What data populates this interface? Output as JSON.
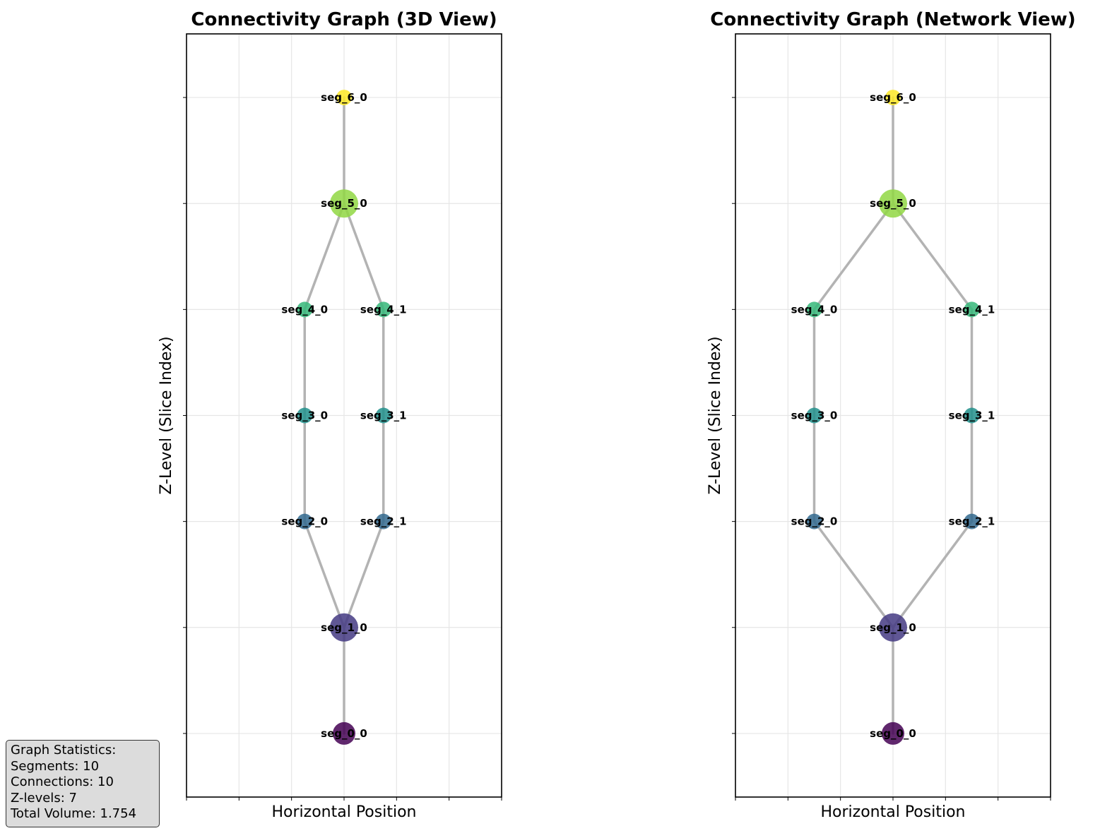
{
  "chart_data": [
    {
      "type": "network",
      "title": "Connectivity Graph (3D View)",
      "xlabel": "Horizontal Position",
      "ylabel": "Z-Level (Slice Index)",
      "xlim": [
        -3,
        3
      ],
      "ylim": [
        -0.6,
        6.6
      ],
      "grid": true,
      "nodes": [
        {
          "id": "seg_0_0",
          "label": "seg_0_0",
          "x": 0.0,
          "z": 0,
          "size": "medium",
          "color": "#440154"
        },
        {
          "id": "seg_1_0",
          "label": "seg_1_0",
          "x": 0.0,
          "z": 1,
          "size": "large",
          "color": "#443983"
        },
        {
          "id": "seg_2_0",
          "label": "seg_2_0",
          "x": -0.75,
          "z": 2,
          "size": "small",
          "color": "#31688e"
        },
        {
          "id": "seg_2_1",
          "label": "seg_2_1",
          "x": 0.75,
          "z": 2,
          "size": "small",
          "color": "#31688e"
        },
        {
          "id": "seg_3_0",
          "label": "seg_3_0",
          "x": -0.75,
          "z": 3,
          "size": "small",
          "color": "#21918c"
        },
        {
          "id": "seg_3_1",
          "label": "seg_3_1",
          "x": 0.75,
          "z": 3,
          "size": "small",
          "color": "#21918c"
        },
        {
          "id": "seg_4_0",
          "label": "seg_4_0",
          "x": -0.75,
          "z": 4,
          "size": "small",
          "color": "#35b779"
        },
        {
          "id": "seg_4_1",
          "label": "seg_4_1",
          "x": 0.75,
          "z": 4,
          "size": "small",
          "color": "#35b779"
        },
        {
          "id": "seg_5_0",
          "label": "seg_5_0",
          "x": 0.0,
          "z": 5,
          "size": "large",
          "color": "#90d743"
        },
        {
          "id": "seg_6_0",
          "label": "seg_6_0",
          "x": 0.0,
          "z": 6,
          "size": "small",
          "color": "#fde725"
        }
      ],
      "edges": [
        [
          "seg_0_0",
          "seg_1_0"
        ],
        [
          "seg_1_0",
          "seg_2_0"
        ],
        [
          "seg_1_0",
          "seg_2_1"
        ],
        [
          "seg_2_0",
          "seg_3_0"
        ],
        [
          "seg_2_1",
          "seg_3_1"
        ],
        [
          "seg_3_0",
          "seg_4_0"
        ],
        [
          "seg_3_1",
          "seg_4_1"
        ],
        [
          "seg_4_0",
          "seg_5_0"
        ],
        [
          "seg_4_1",
          "seg_5_0"
        ],
        [
          "seg_5_0",
          "seg_6_0"
        ]
      ]
    },
    {
      "type": "network",
      "title": "Connectivity Graph (Network View)",
      "xlabel": "Horizontal Position",
      "ylabel": "Z-Level (Slice Index)",
      "xlim": [
        -3,
        3
      ],
      "ylim": [
        -0.6,
        6.6
      ],
      "grid": true,
      "nodes": [
        {
          "id": "seg_0_0",
          "label": "seg_0_0",
          "x": 0.0,
          "z": 0,
          "size": "medium",
          "color": "#440154"
        },
        {
          "id": "seg_1_0",
          "label": "seg_1_0",
          "x": 0.0,
          "z": 1,
          "size": "large",
          "color": "#443983"
        },
        {
          "id": "seg_2_0",
          "label": "seg_2_0",
          "x": -1.5,
          "z": 2,
          "size": "small",
          "color": "#31688e"
        },
        {
          "id": "seg_2_1",
          "label": "seg_2_1",
          "x": 1.5,
          "z": 2,
          "size": "small",
          "color": "#31688e"
        },
        {
          "id": "seg_3_0",
          "label": "seg_3_0",
          "x": -1.5,
          "z": 3,
          "size": "small",
          "color": "#21918c"
        },
        {
          "id": "seg_3_1",
          "label": "seg_3_1",
          "x": 1.5,
          "z": 3,
          "size": "small",
          "color": "#21918c"
        },
        {
          "id": "seg_4_0",
          "label": "seg_4_0",
          "x": -1.5,
          "z": 4,
          "size": "small",
          "color": "#35b779"
        },
        {
          "id": "seg_4_1",
          "label": "seg_4_1",
          "x": 1.5,
          "z": 4,
          "size": "small",
          "color": "#35b779"
        },
        {
          "id": "seg_5_0",
          "label": "seg_5_0",
          "x": 0.0,
          "z": 5,
          "size": "large",
          "color": "#90d743"
        },
        {
          "id": "seg_6_0",
          "label": "seg_6_0",
          "x": 0.0,
          "z": 6,
          "size": "small",
          "color": "#fde725"
        }
      ],
      "edges": [
        [
          "seg_0_0",
          "seg_1_0"
        ],
        [
          "seg_1_0",
          "seg_2_0"
        ],
        [
          "seg_1_0",
          "seg_2_1"
        ],
        [
          "seg_2_0",
          "seg_3_0"
        ],
        [
          "seg_2_1",
          "seg_3_1"
        ],
        [
          "seg_3_0",
          "seg_4_0"
        ],
        [
          "seg_3_1",
          "seg_4_1"
        ],
        [
          "seg_4_0",
          "seg_5_0"
        ],
        [
          "seg_4_1",
          "seg_5_0"
        ],
        [
          "seg_5_0",
          "seg_6_0"
        ]
      ]
    }
  ],
  "colors": {
    "edge": "#b3b3b3",
    "grid": "#e6e6e6",
    "stats_background": "#dcdcdc"
  },
  "stats": {
    "heading": "Graph Statistics:",
    "segments": "Segments: 10",
    "connections": "Connections: 10",
    "zlevels": "Z-levels: 7",
    "volume": "Total Volume: 1.754"
  }
}
